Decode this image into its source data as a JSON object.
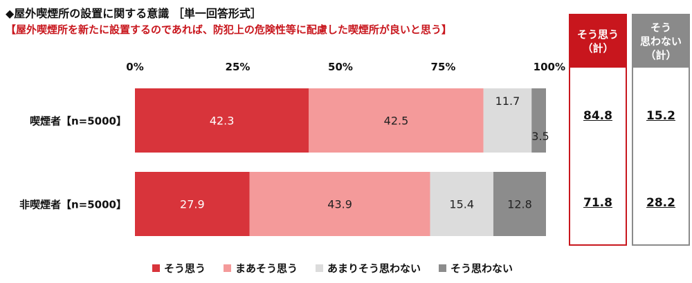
{
  "title": "◆屋外喫煙所の設置に関する意識 ［単一回答形式］",
  "subtitle": "【屋外喫煙所を新たに設置するのであれば、防犯上の危険性等に配慮した喫煙所が良いと思う】",
  "chart_data": {
    "type": "bar",
    "orientation": "horizontal",
    "stacked": true,
    "percent_axis": true,
    "xlim": [
      0,
      100
    ],
    "x_ticks": [
      "0%",
      "25%",
      "50%",
      "75%",
      "100%"
    ],
    "x_tick_values": [
      0,
      25,
      50,
      75,
      100
    ],
    "categories": [
      "喫煙者【n=5000】",
      "非喫煙者【n=5000】"
    ],
    "series": [
      {
        "name": "そう思う",
        "color": "#d8343b",
        "label_color": "#ffffff",
        "values": [
          42.3,
          27.9
        ]
      },
      {
        "name": "まあそう思う",
        "color": "#f49a9a",
        "label_color": "#222222",
        "values": [
          42.5,
          43.9
        ]
      },
      {
        "name": "あまりそう思わない",
        "color": "#dcdcdc",
        "label_color": "#222222",
        "values": [
          11.7,
          15.4
        ]
      },
      {
        "name": "そう思わない",
        "color": "#8c8c8c",
        "label_color": "#222222",
        "values": [
          3.5,
          12.8
        ]
      }
    ],
    "legend_position": "bottom",
    "grid": false
  },
  "summary": {
    "agree": {
      "header_lines": [
        "そう思う",
        "（計）"
      ],
      "values": [
        "84.8",
        "71.8"
      ]
    },
    "disagree": {
      "header_lines": [
        "そう",
        "思わない",
        "（計）"
      ],
      "values": [
        "15.2",
        "28.2"
      ]
    }
  }
}
